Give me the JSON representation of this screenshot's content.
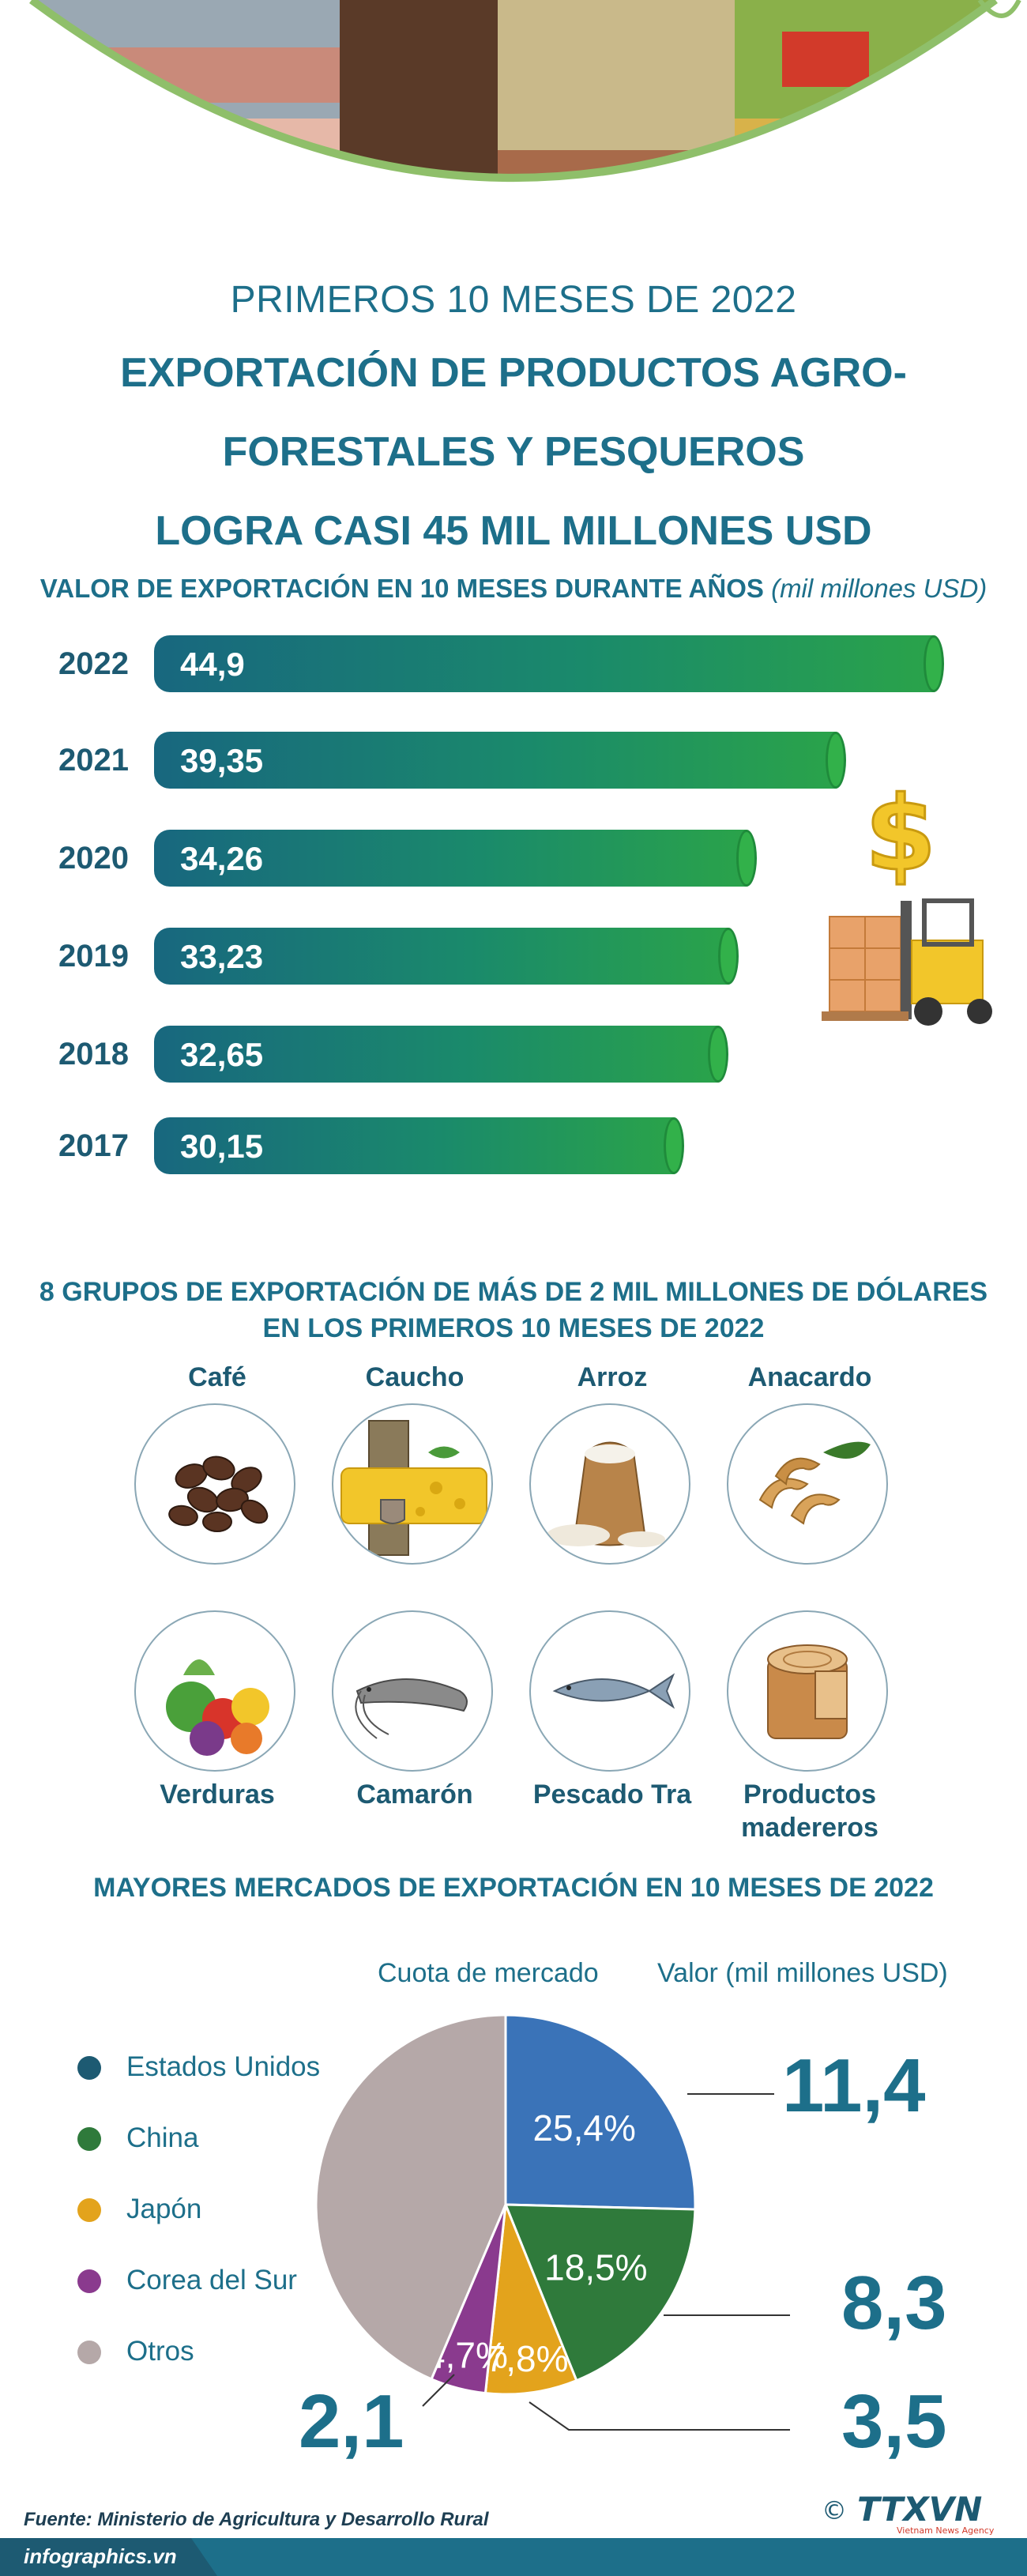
{
  "header": {
    "period": "PRIMEROS 10 MESES DE 2022",
    "title_line1": "EXPORTACIÓN DE PRODUCTOS AGRO-",
    "title_line2": "FORESTALES Y PESQUEROS",
    "title_line3": "LOGRA CASI 45 MIL MILLONES USD"
  },
  "chart_data": [
    {
      "type": "bar",
      "title": "VALOR DE EXPORTACIÓN EN 10 MESES DURANTE AÑOS",
      "unit": "(mil millones USD)",
      "categories": [
        "2022",
        "2021",
        "2020",
        "2019",
        "2018",
        "2017"
      ],
      "values": [
        44.9,
        39.35,
        34.26,
        33.23,
        32.65,
        30.15
      ],
      "value_labels": [
        "44,9",
        "39,35",
        "34,26",
        "33,23",
        "32,65",
        "30,15"
      ],
      "orientation": "horizontal"
    },
    {
      "type": "pie",
      "title": "MAYORES MERCADOS DE EXPORTACIÓN EN 10 MESES DE 2022",
      "share_header": "Cuota de mercado",
      "value_header": "Valor (mil millones USD)",
      "slices": [
        {
          "name": "Estados Unidos",
          "share": 25.4,
          "share_label": "25,4%",
          "value_label": "11,4",
          "color": "#3a73b8"
        },
        {
          "name": "China",
          "share": 18.5,
          "share_label": "18,5%",
          "value_label": "8,3",
          "color": "#2f7a3b"
        },
        {
          "name": "Japón",
          "share": 7.8,
          "share_label": "7,8%",
          "value_label": "3,5",
          "color": "#e3a31c"
        },
        {
          "name": "Corea del Sur",
          "share": 4.7,
          "share_label": "4,7%",
          "value_label": "2,1",
          "color": "#8a3a8e"
        },
        {
          "name": "Otros",
          "share": 43.6,
          "share_label": "",
          "value_label": "",
          "color": "#b5a8a8"
        }
      ]
    }
  ],
  "groups": {
    "title_line1": "8 GRUPOS DE EXPORTACIÓN DE MÁS DE 2 MIL MILLONES DE DÓLARES",
    "title_line2": "EN LOS PRIMEROS 10 MESES DE 2022",
    "items": [
      {
        "label": "Café",
        "icon": "coffee-beans-icon"
      },
      {
        "label": "Caucho",
        "icon": "rubber-icon"
      },
      {
        "label": "Arroz",
        "icon": "rice-sack-icon"
      },
      {
        "label": "Anacardo",
        "icon": "cashew-icon"
      },
      {
        "label": "Verduras",
        "icon": "vegetables-icon"
      },
      {
        "label": "Camarón",
        "icon": "shrimp-icon"
      },
      {
        "label": "Pescado Tra",
        "icon": "fish-icon"
      },
      {
        "label": "Productos madereros",
        "icon": "wood-log-icon"
      }
    ]
  },
  "footer": {
    "source": "Fuente: Ministerio de Agricultura y Desarrollo Rural",
    "site": "infographics.vn",
    "copyright": "©",
    "brand": "TTXVN",
    "brand_sub": "Vietnam News Agency"
  }
}
